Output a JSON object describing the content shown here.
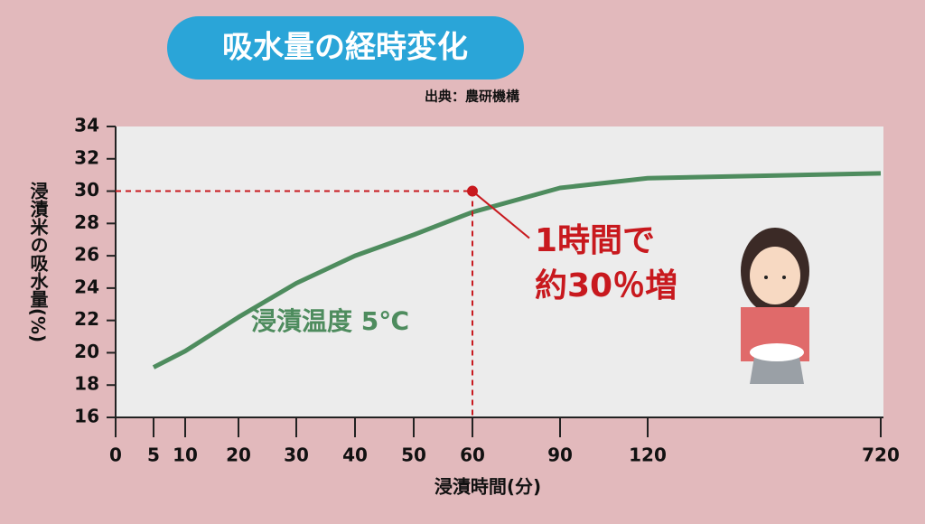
{
  "chart_data": {
    "type": "line",
    "title": "吸水量の経時変化",
    "source": "出典：農研機構",
    "y_label": "浸漬米の吸水量(%)",
    "x_label": "浸漬時間(分)",
    "categories": [
      "0",
      "5",
      "10",
      "20",
      "30",
      "40",
      "50",
      "60",
      "90",
      "120",
      "720"
    ],
    "series": [
      {
        "name": "浸漬温度 5℃",
        "color": "#4e8c5e",
        "values": [
          null,
          19.1,
          20.1,
          22.2,
          24.3,
          26.0,
          27.3,
          28.7,
          30.2,
          30.8,
          31.1
        ]
      }
    ],
    "ylim": [
      16,
      34
    ],
    "yticks": [
      16,
      18,
      20,
      22,
      24,
      26,
      28,
      30,
      32,
      34
    ],
    "highlight": {
      "category": "60",
      "value": 30,
      "color": "#c8191e",
      "labels": [
        "1時間で",
        "約30％増"
      ]
    }
  }
}
